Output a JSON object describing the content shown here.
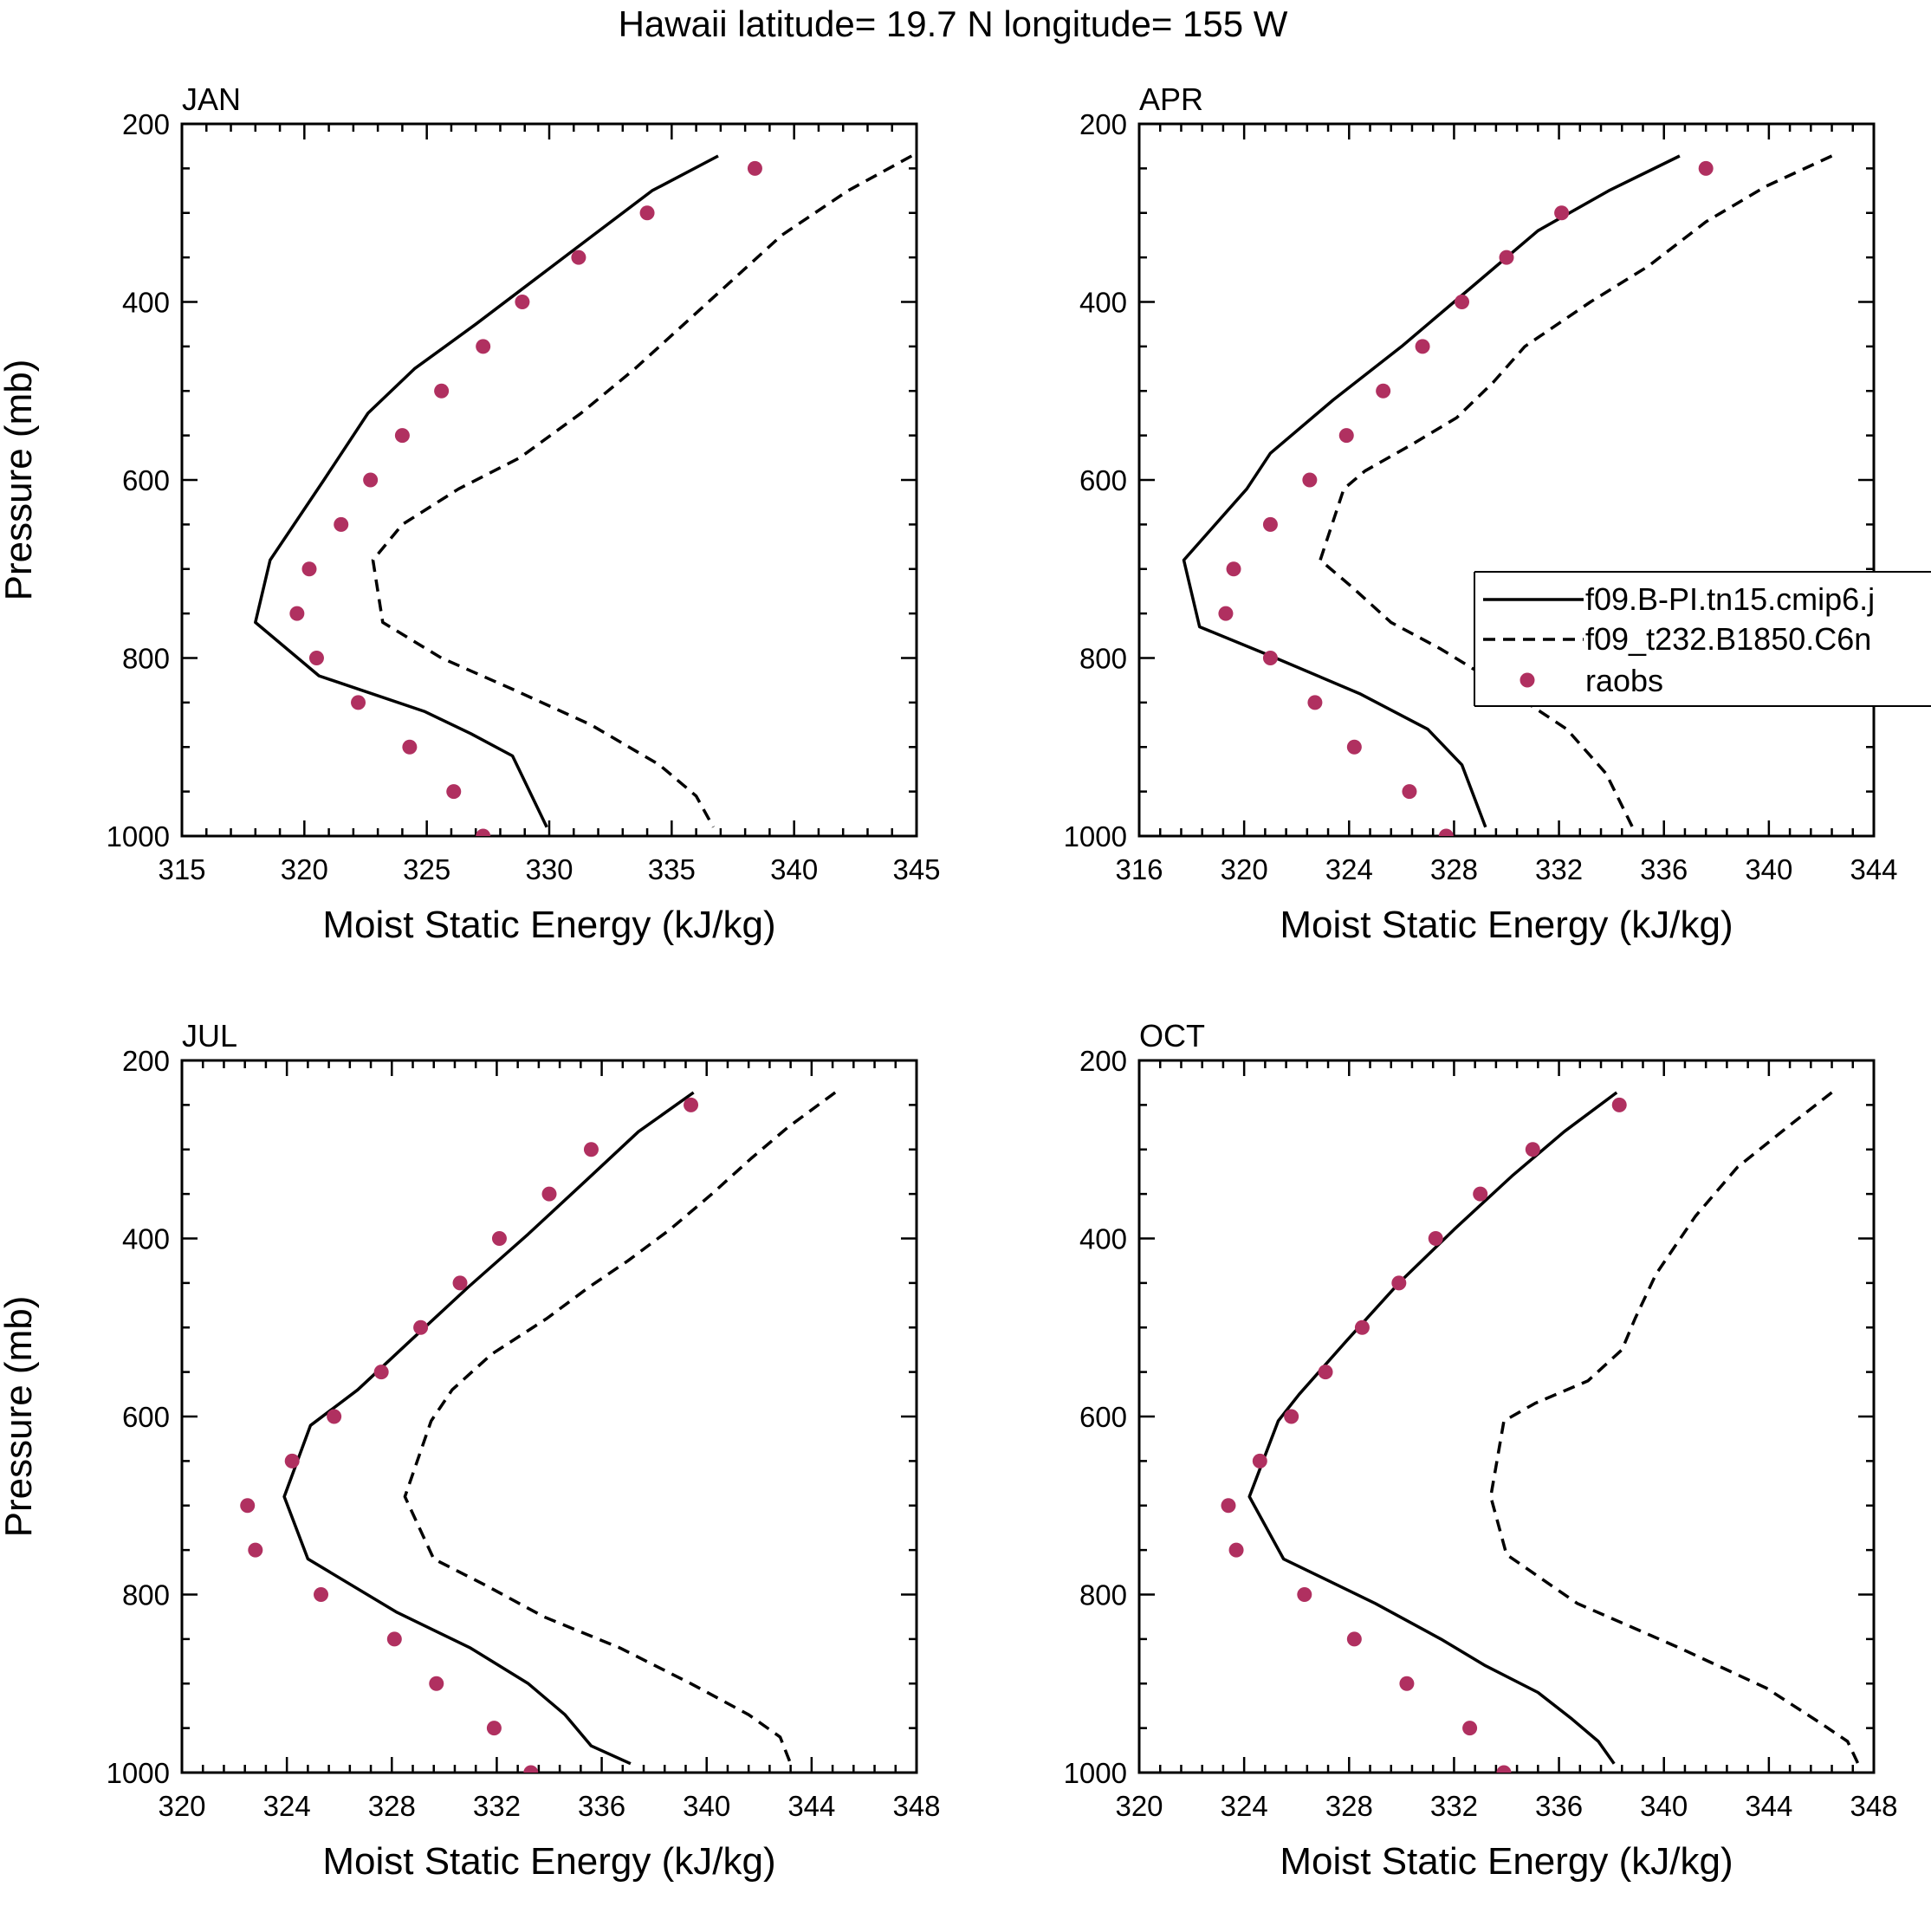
{
  "title": "Hawaii  latitude= 19.7 N longitude= 155 W",
  "colors": {
    "raobs": "#b03060",
    "axis": "#000000",
    "model": "#000000"
  },
  "legend": {
    "placement": "right-middle of APR panel",
    "entries": [
      {
        "label": "f09.B-PI.tn15.cmip6.j",
        "style": "solid"
      },
      {
        "label": "f09_t232.B1850.C6n",
        "style": "dashed"
      },
      {
        "label": "raobs",
        "style": "marker"
      }
    ]
  },
  "chart_data": [
    {
      "type": "line",
      "title": "JAN",
      "xlabel": "Moist Static Energy (kJ/kg)",
      "ylabel": "Pressure (mb)",
      "xlim": [
        315,
        345
      ],
      "xticks": [
        315,
        320,
        325,
        330,
        335,
        340,
        345
      ],
      "ylim": [
        200,
        1000
      ],
      "yticks": [
        200,
        400,
        600,
        800,
        1000
      ],
      "series": [
        {
          "name": "f09.B-PI.tn15.cmip6.j",
          "style": "solid",
          "x": [
            336.9,
            334.2,
            331.8,
            329.4,
            327.0,
            324.5,
            322.6,
            320.8,
            318.6,
            318.0,
            320.6,
            324.9,
            326.8,
            328.5,
            329.9
          ],
          "y": [
            236,
            275,
            325,
            375,
            425,
            475,
            525,
            600,
            690,
            760,
            820,
            860,
            885,
            910,
            990
          ]
        },
        {
          "name": "f09_t232.B1850.C6n",
          "style": "dashed",
          "x": [
            344.8,
            342.2,
            339.5,
            337.5,
            335.5,
            333.5,
            331.3,
            328.8,
            326.3,
            324.0,
            322.8,
            323.2,
            325.6,
            328.5,
            331.7,
            334.5,
            336.0,
            336.7
          ],
          "y": [
            236,
            275,
            325,
            375,
            425,
            475,
            525,
            575,
            610,
            650,
            690,
            760,
            800,
            835,
            875,
            920,
            955,
            990
          ]
        },
        {
          "name": "raobs",
          "style": "marker",
          "x": [
            338.4,
            334.0,
            331.2,
            328.9,
            327.3,
            325.6,
            324.0,
            322.7,
            321.5,
            320.2,
            319.7,
            320.5,
            322.2,
            324.3,
            326.1,
            327.3
          ],
          "y": [
            250,
            300,
            350,
            400,
            450,
            500,
            550,
            600,
            650,
            700,
            750,
            800,
            850,
            900,
            950,
            1000
          ]
        }
      ]
    },
    {
      "type": "line",
      "title": "APR",
      "xlabel": "Moist Static Energy (kJ/kg)",
      "ylabel": "",
      "xlim": [
        316,
        344
      ],
      "xticks": [
        316,
        320,
        324,
        328,
        332,
        336,
        340,
        344
      ],
      "ylim": [
        200,
        1000
      ],
      "yticks": [
        200,
        400,
        600,
        800,
        1000
      ],
      "series": [
        {
          "name": "f09.B-PI.tn15.cmip6.j",
          "style": "solid",
          "x": [
            336.6,
            333.9,
            331.2,
            328.8,
            326.0,
            323.4,
            321.0,
            320.1,
            317.7,
            318.3,
            321.2,
            324.4,
            327.0,
            328.3,
            329.2
          ],
          "y": [
            236,
            275,
            320,
            380,
            450,
            510,
            570,
            610,
            690,
            765,
            800,
            840,
            880,
            920,
            990
          ]
        },
        {
          "name": "f09_t232.B1850.C6n",
          "style": "dashed",
          "x": [
            342.4,
            339.9,
            337.6,
            335.4,
            333.2,
            330.7,
            329.5,
            328.1,
            326.4,
            324.6,
            323.8,
            322.9,
            324.1,
            325.6,
            327.5,
            330.0,
            332.3,
            333.8,
            334.8
          ],
          "y": [
            236,
            270,
            310,
            360,
            400,
            450,
            490,
            530,
            560,
            590,
            610,
            690,
            720,
            760,
            790,
            835,
            880,
            930,
            990
          ]
        },
        {
          "name": "raobs",
          "style": "marker",
          "x": [
            337.6,
            332.1,
            330.0,
            328.3,
            326.8,
            325.3,
            323.9,
            322.5,
            321.0,
            319.6,
            319.3,
            321.0,
            322.7,
            324.2,
            326.3,
            327.7
          ],
          "y": [
            250,
            300,
            350,
            400,
            450,
            500,
            550,
            600,
            650,
            700,
            750,
            800,
            850,
            900,
            950,
            1000
          ]
        }
      ]
    },
    {
      "type": "line",
      "title": "JUL",
      "xlabel": "Moist Static Energy (kJ/kg)",
      "ylabel": "Pressure (mb)",
      "xlim": [
        320,
        348
      ],
      "xticks": [
        320,
        324,
        328,
        332,
        336,
        340,
        344,
        348
      ],
      "ylim": [
        200,
        1000
      ],
      "yticks": [
        200,
        400,
        600,
        800,
        1000
      ],
      "series": [
        {
          "name": "f09.B-PI.tn15.cmip6.j",
          "style": "solid",
          "x": [
            339.5,
            337.4,
            335.4,
            333.2,
            330.9,
            328.7,
            326.7,
            324.9,
            323.9,
            324.8,
            328.2,
            331.0,
            333.2,
            334.6,
            335.6,
            337.1
          ],
          "y": [
            236,
            280,
            335,
            395,
            455,
            515,
            570,
            610,
            690,
            760,
            820,
            860,
            900,
            935,
            970,
            990
          ]
        },
        {
          "name": "f09_t232.B1850.C6n",
          "style": "dashed",
          "x": [
            344.9,
            343.1,
            341.7,
            340.2,
            338.6,
            337.0,
            335.5,
            333.9,
            331.8,
            330.3,
            329.5,
            328.5,
            329.6,
            331.6,
            333.8,
            336.7,
            339.4,
            341.6,
            342.8,
            343.2
          ],
          "y": [
            236,
            275,
            310,
            350,
            390,
            425,
            455,
            490,
            530,
            570,
            605,
            690,
            760,
            790,
            825,
            860,
            900,
            935,
            960,
            990
          ]
        },
        {
          "name": "raobs",
          "style": "marker",
          "x": [
            339.4,
            335.6,
            334.0,
            332.1,
            330.6,
            329.1,
            327.6,
            325.8,
            324.2,
            322.5,
            322.8,
            325.3,
            328.1,
            329.7,
            331.9,
            333.3
          ],
          "y": [
            250,
            300,
            350,
            400,
            450,
            500,
            550,
            600,
            650,
            700,
            750,
            800,
            850,
            900,
            950,
            1000
          ]
        }
      ]
    },
    {
      "type": "line",
      "title": "OCT",
      "xlabel": "Moist Static Energy (kJ/kg)",
      "ylabel": "",
      "xlim": [
        320,
        348
      ],
      "xticks": [
        320,
        324,
        328,
        332,
        336,
        340,
        344,
        348
      ],
      "ylim": [
        200,
        1000
      ],
      "yticks": [
        200,
        400,
        600,
        800,
        1000
      ],
      "series": [
        {
          "name": "f09.B-PI.tn15.cmip6.j",
          "style": "solid",
          "x": [
            338.2,
            336.2,
            334.2,
            332.0,
            329.9,
            327.9,
            326.1,
            325.3,
            324.2,
            325.5,
            329.0,
            331.5,
            333.2,
            335.2,
            336.5,
            337.5,
            338.1
          ],
          "y": [
            236,
            280,
            330,
            390,
            450,
            515,
            575,
            605,
            690,
            760,
            810,
            850,
            880,
            910,
            940,
            965,
            990
          ]
        },
        {
          "name": "f09_t232.B1850.C6n",
          "style": "dashed",
          "x": [
            346.4,
            344.7,
            342.8,
            341.2,
            339.7,
            338.9,
            338.4,
            337.1,
            335.1,
            333.9,
            333.4,
            334.0,
            336.7,
            340.6,
            343.9,
            346.0,
            347.0,
            347.4
          ],
          "y": [
            236,
            275,
            320,
            375,
            440,
            490,
            525,
            560,
            585,
            605,
            690,
            755,
            810,
            860,
            905,
            945,
            965,
            990
          ]
        },
        {
          "name": "raobs",
          "style": "marker",
          "x": [
            338.3,
            335.0,
            333.0,
            331.3,
            329.9,
            328.5,
            327.1,
            325.8,
            324.6,
            323.4,
            323.7,
            326.3,
            328.2,
            330.2,
            332.6,
            333.9
          ],
          "y": [
            250,
            300,
            350,
            400,
            450,
            500,
            550,
            600,
            650,
            700,
            750,
            800,
            850,
            900,
            950,
            1000
          ]
        }
      ]
    }
  ]
}
